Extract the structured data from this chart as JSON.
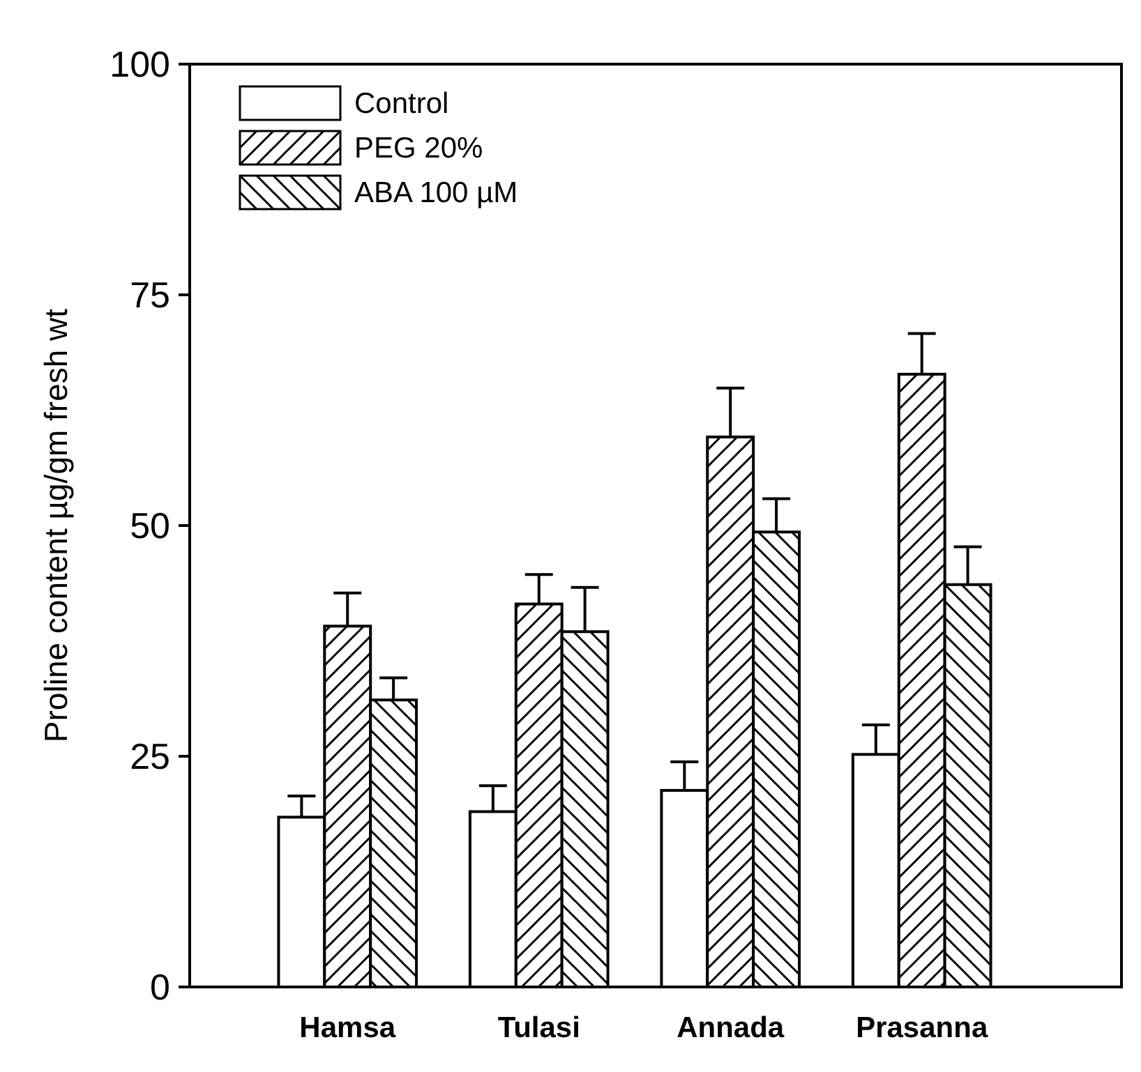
{
  "chart_data": {
    "type": "bar",
    "ylabel": "Proline content µg/gm fresh wt",
    "categories": [
      "Hamsa",
      "Tulasi",
      "Annada",
      "Prasanna"
    ],
    "series": [
      {
        "name": "Control",
        "color": "#000000",
        "values": [
          18.4,
          19.0,
          21.3,
          25.2
        ],
        "errors": [
          2.3,
          2.8,
          3.1,
          3.2
        ]
      },
      {
        "name": "PEG 20%",
        "color": "#000000",
        "values": [
          39.1,
          41.5,
          59.6,
          66.4
        ],
        "errors": [
          3.6,
          3.2,
          5.3,
          4.4
        ]
      },
      {
        "name": "ABA 100 µM",
        "color": "#000000",
        "values": [
          31.1,
          38.5,
          49.3,
          43.6
        ],
        "errors": [
          2.4,
          4.8,
          3.6,
          4.1
        ]
      }
    ],
    "ylim": [
      0,
      100
    ],
    "yticks": [
      0,
      25,
      50,
      75,
      100
    ],
    "grid": false,
    "legend": "top left"
  }
}
